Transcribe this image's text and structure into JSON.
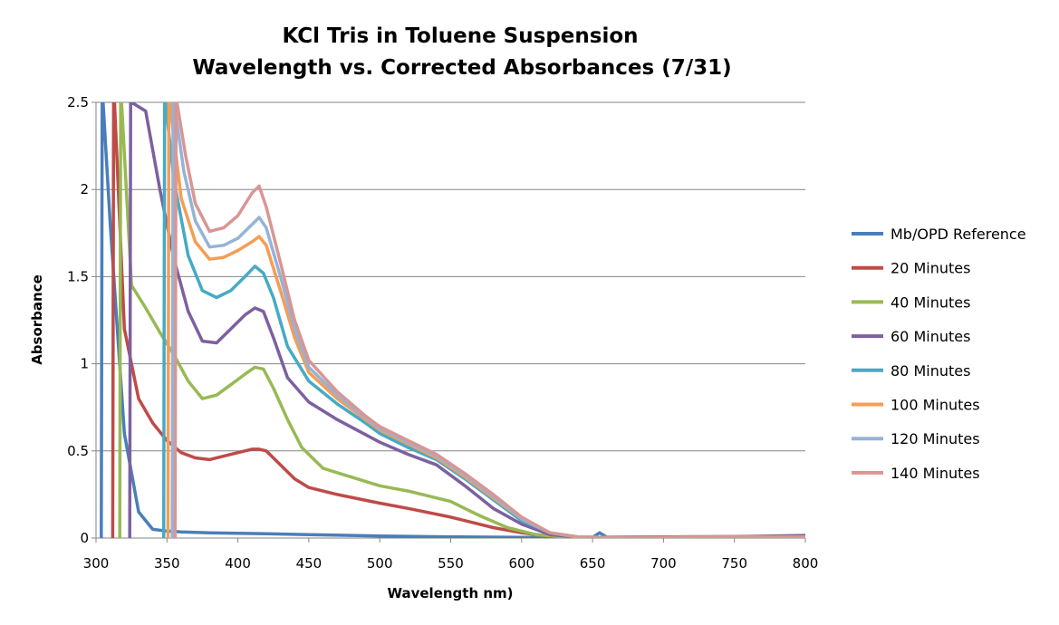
{
  "chart_data": {
    "type": "line",
    "title": [
      "KCl Tris in Toluene Suspension",
      "Wavelength vs. Corrected Absorbances (7/31)"
    ],
    "xlabel": "Wavelength nm)",
    "ylabel": "Absorbance",
    "xlim": [
      300,
      800
    ],
    "ylim": [
      0,
      2.5
    ],
    "xticks": [
      "300",
      "350",
      "400",
      "450",
      "500",
      "550",
      "600",
      "650",
      "700",
      "750",
      "800"
    ],
    "yticks": [
      "0",
      "0.5",
      "1",
      "1.5",
      "2",
      "2.5"
    ],
    "grid": true,
    "legend_position": "right",
    "series": [
      {
        "name": "Mb/OPD Reference",
        "color": "#4a7ebb",
        "x": [
          305,
          310,
          320,
          330,
          340,
          350,
          360,
          380,
          400,
          420,
          450,
          500,
          550,
          600,
          650,
          655,
          660,
          700,
          750,
          800
        ],
        "y": [
          2.5,
          1.8,
          0.6,
          0.15,
          0.05,
          0.04,
          0.035,
          0.03,
          0.027,
          0.025,
          0.02,
          0.012,
          0.007,
          0.004,
          0.004,
          0.03,
          0.005,
          0.006,
          0.008,
          0.015
        ]
      },
      {
        "name": "20 Minutes",
        "color": "#be4b48",
        "x": [
          313,
          320,
          330,
          340,
          350,
          360,
          370,
          380,
          390,
          400,
          410,
          415,
          420,
          430,
          440,
          450,
          470,
          500,
          520,
          550,
          580,
          600,
          620,
          640,
          660,
          700,
          750,
          800
        ],
        "y": [
          2.5,
          1.2,
          0.8,
          0.66,
          0.56,
          0.49,
          0.46,
          0.45,
          0.47,
          0.49,
          0.51,
          0.51,
          0.5,
          0.42,
          0.34,
          0.29,
          0.25,
          0.2,
          0.17,
          0.12,
          0.06,
          0.03,
          0.01,
          0.004,
          0.004,
          0.006,
          0.008,
          0.01
        ]
      },
      {
        "name": "40 Minutes",
        "color": "#98b954",
        "x": [
          318,
          325,
          335,
          345,
          355,
          365,
          375,
          385,
          395,
          405,
          412,
          418,
          425,
          435,
          445,
          460,
          480,
          500,
          520,
          550,
          570,
          590,
          610,
          630,
          650,
          700,
          750,
          800
        ],
        "y": [
          2.5,
          1.45,
          1.32,
          1.18,
          1.05,
          0.9,
          0.8,
          0.82,
          0.88,
          0.94,
          0.98,
          0.97,
          0.86,
          0.68,
          0.52,
          0.4,
          0.35,
          0.3,
          0.27,
          0.21,
          0.13,
          0.06,
          0.02,
          0.005,
          0.003,
          0.004,
          0.005,
          0.006
        ]
      },
      {
        "name": "60 Minutes",
        "color": "#7d60a0",
        "x": [
          325,
          335,
          345,
          355,
          365,
          375,
          385,
          395,
          405,
          412,
          418,
          425,
          435,
          450,
          470,
          500,
          520,
          540,
          560,
          580,
          600,
          620,
          640,
          660,
          700,
          800
        ],
        "y": [
          2.5,
          2.45,
          2.0,
          1.6,
          1.3,
          1.13,
          1.12,
          1.2,
          1.28,
          1.32,
          1.3,
          1.15,
          0.92,
          0.78,
          0.68,
          0.55,
          0.48,
          0.42,
          0.3,
          0.17,
          0.08,
          0.02,
          0.005,
          0.003,
          0.004,
          0.006
        ]
      },
      {
        "name": "80 Minutes",
        "color": "#46aac5",
        "x": [
          349,
          355,
          365,
          375,
          385,
          395,
          405,
          412,
          418,
          425,
          435,
          450,
          470,
          490,
          500,
          520,
          540,
          560,
          580,
          600,
          620,
          640,
          660,
          700,
          800
        ],
        "y": [
          2.5,
          2.05,
          1.62,
          1.42,
          1.38,
          1.42,
          1.5,
          1.56,
          1.52,
          1.38,
          1.1,
          0.9,
          0.77,
          0.66,
          0.6,
          0.52,
          0.45,
          0.34,
          0.22,
          0.1,
          0.03,
          0.005,
          0.003,
          0.004,
          0.006
        ]
      },
      {
        "name": "100 Minutes",
        "color": "#f59d56",
        "x": [
          352,
          360,
          370,
          380,
          390,
          400,
          410,
          415,
          420,
          430,
          440,
          450,
          470,
          490,
          500,
          520,
          540,
          560,
          580,
          600,
          620,
          640,
          660,
          700,
          800
        ],
        "y": [
          2.5,
          1.95,
          1.7,
          1.6,
          1.61,
          1.65,
          1.7,
          1.73,
          1.68,
          1.42,
          1.15,
          0.95,
          0.8,
          0.68,
          0.62,
          0.54,
          0.46,
          0.35,
          0.23,
          0.11,
          0.03,
          0.005,
          0.003,
          0.004,
          0.006
        ]
      },
      {
        "name": "120 Minutes",
        "color": "#95b3d7",
        "x": [
          355,
          362,
          370,
          380,
          390,
          400,
          410,
          415,
          420,
          430,
          440,
          450,
          470,
          490,
          500,
          520,
          540,
          560,
          580,
          600,
          620,
          640,
          660,
          700,
          800
        ],
        "y": [
          2.5,
          2.1,
          1.82,
          1.67,
          1.68,
          1.72,
          1.8,
          1.84,
          1.78,
          1.5,
          1.2,
          0.98,
          0.82,
          0.69,
          0.63,
          0.55,
          0.47,
          0.36,
          0.24,
          0.11,
          0.03,
          0.006,
          0.003,
          0.004,
          0.006
        ]
      },
      {
        "name": "140 Minutes",
        "color": "#d99694",
        "x": [
          357,
          363,
          370,
          380,
          390,
          400,
          410,
          415,
          420,
          430,
          440,
          450,
          470,
          490,
          500,
          520,
          540,
          560,
          580,
          600,
          620,
          640,
          660,
          700,
          800
        ],
        "y": [
          2.5,
          2.2,
          1.92,
          1.76,
          1.78,
          1.85,
          1.98,
          2.02,
          1.9,
          1.58,
          1.25,
          1.02,
          0.84,
          0.7,
          0.64,
          0.56,
          0.48,
          0.37,
          0.25,
          0.12,
          0.03,
          0.007,
          0.003,
          0.004,
          0.006
        ]
      }
    ]
  }
}
